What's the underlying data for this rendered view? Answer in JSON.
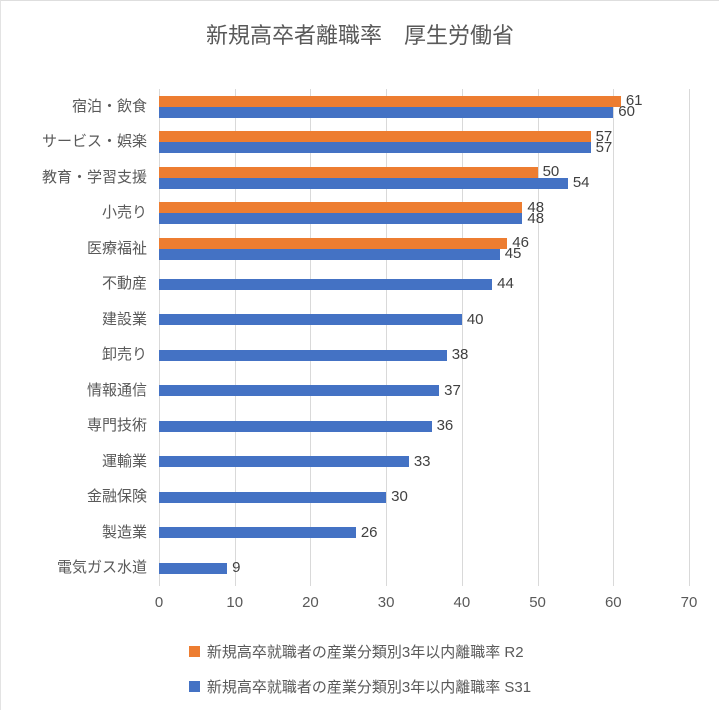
{
  "title": "新規高卒者離職率　厚生労働省",
  "chart_data": {
    "type": "bar",
    "orientation": "horizontal",
    "title": "新規高卒者離職率　厚生労働省",
    "categories": [
      "宿泊・飲食",
      "サービス・娯楽",
      "教育・学習支援",
      "小売り",
      "医療福祉",
      "不動産",
      "建設業",
      "卸売り",
      "情報通信",
      "専門技術",
      "運輸業",
      "金融保険",
      "製造業",
      "電気ガス水道"
    ],
    "series": [
      {
        "name": "新規高卒就職者の産業分類別3年以内離職率 R2",
        "color": "#ED7D31",
        "values": [
          61,
          57,
          50,
          48,
          46,
          null,
          null,
          null,
          null,
          null,
          null,
          null,
          null,
          null
        ]
      },
      {
        "name": "新規高卒就職者の産業分類別3年以内離職率 S31",
        "color": "#4472C4",
        "values": [
          60,
          57,
          54,
          48,
          45,
          44,
          40,
          38,
          37,
          36,
          33,
          30,
          26,
          9
        ]
      }
    ],
    "xlim": [
      0,
      70
    ],
    "xticks": [
      0,
      10,
      20,
      30,
      40,
      50,
      60,
      70
    ],
    "grid": "vertical",
    "gridline_color": "#D9D9D9",
    "data_labels": true,
    "data_label_color": "#404040",
    "text_color": "#595959",
    "legend_position": "bottom"
  }
}
